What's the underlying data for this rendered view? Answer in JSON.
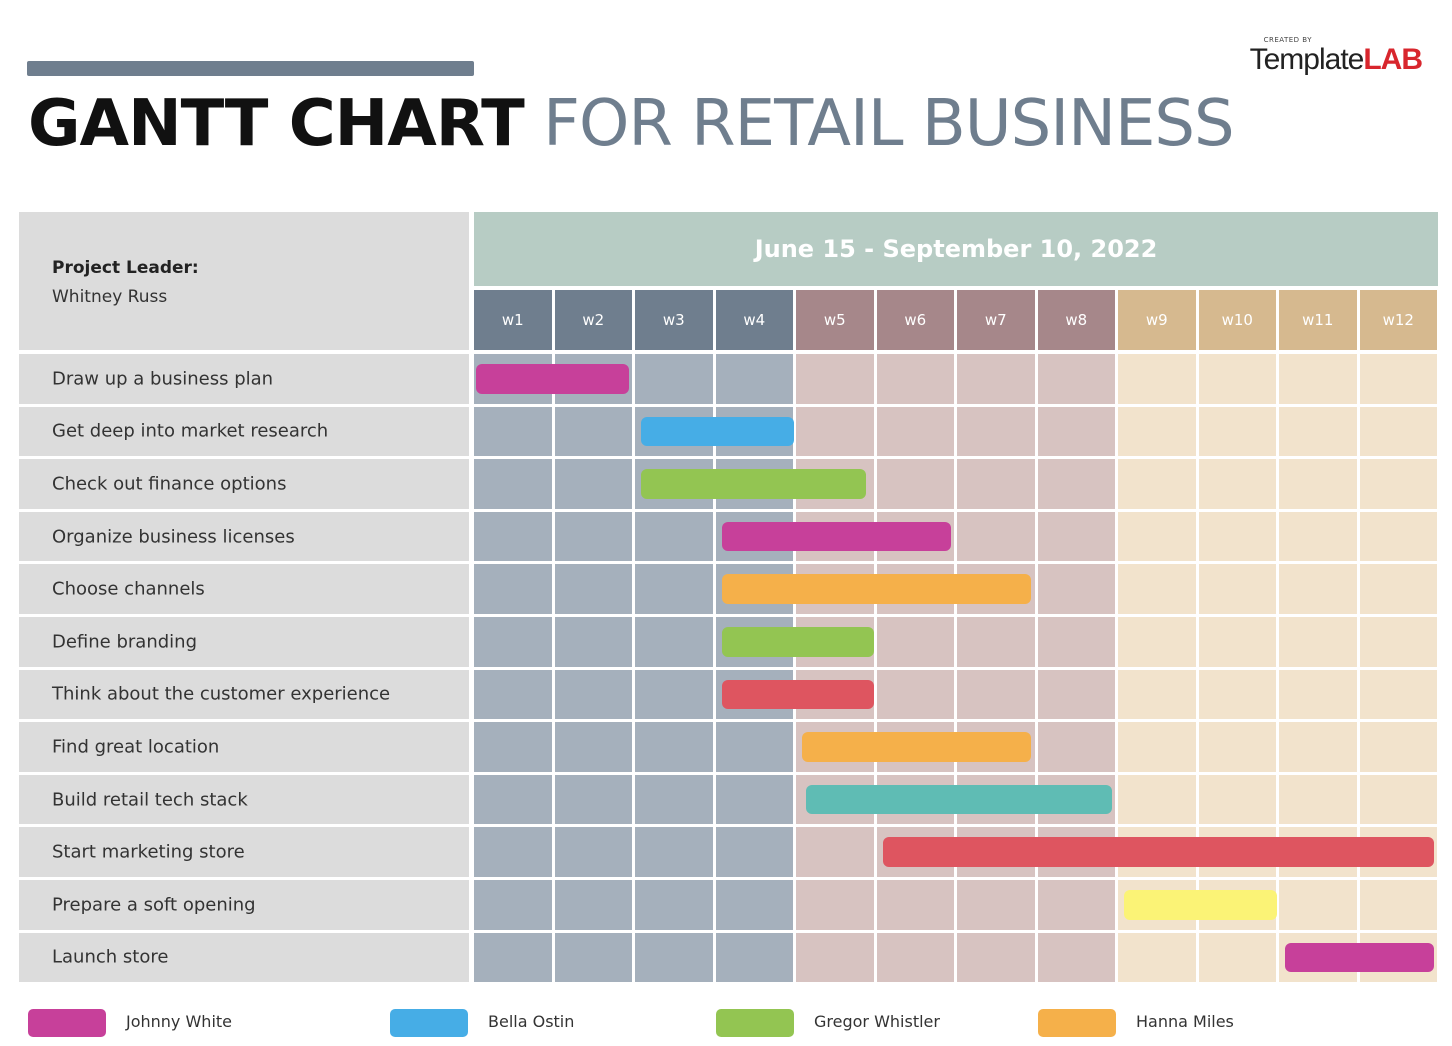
{
  "header": {
    "title_bold": "GANTT CHART",
    "title_light": "FOR RETAIL BUSINESS",
    "logo_small": "CREATED BY",
    "logo_part1": "Template",
    "logo_part2": "LAB"
  },
  "project": {
    "leader_label": "Project Leader:",
    "leader_name": "Whitney Russ",
    "date_range": "June 15 - September 10, 2022"
  },
  "colors": {
    "magenta": "#c7409a",
    "blue": "#46ade6",
    "green": "#93c552",
    "orange": "#f5b04a",
    "red": "#de5560",
    "teal": "#5fbcb4",
    "yellow": "#fbf376",
    "slate": "#6f7e8e"
  },
  "chart_data": {
    "type": "gantt",
    "weeks": [
      "w1",
      "w2",
      "w3",
      "w4",
      "w5",
      "w6",
      "w7",
      "w8",
      "w9",
      "w10",
      "w11",
      "w12"
    ],
    "tasks": [
      {
        "name": "Draw up a business plan",
        "start": 1,
        "end": 2.9,
        "color": "magenta"
      },
      {
        "name": "Get deep into market research",
        "start": 3.05,
        "end": 4.95,
        "color": "blue"
      },
      {
        "name": "Check out finance options",
        "start": 3.05,
        "end": 5.85,
        "color": "green"
      },
      {
        "name": "Organize business licenses",
        "start": 4.05,
        "end": 6.9,
        "color": "magenta"
      },
      {
        "name": "Choose channels",
        "start": 4.05,
        "end": 7.9,
        "color": "orange"
      },
      {
        "name": "Define branding",
        "start": 4.05,
        "end": 5.95,
        "color": "green"
      },
      {
        "name": "Think about the customer experience",
        "start": 4.05,
        "end": 5.95,
        "color": "red"
      },
      {
        "name": "Find great location",
        "start": 5.05,
        "end": 7.9,
        "color": "orange"
      },
      {
        "name": "Build retail tech stack",
        "start": 5.1,
        "end": 8.9,
        "color": "teal"
      },
      {
        "name": "Start marketing store",
        "start": 6.05,
        "end": 12.9,
        "color": "red"
      },
      {
        "name": "Prepare a soft opening",
        "start": 9.05,
        "end": 10.95,
        "color": "yellow"
      },
      {
        "name": "Launch store",
        "start": 11.05,
        "end": 12.9,
        "color": "magenta"
      }
    ],
    "legend": [
      {
        "name": "Johnny White",
        "color": "magenta"
      },
      {
        "name": "Bella Ostin",
        "color": "blue"
      },
      {
        "name": "Gregor Whistler",
        "color": "green"
      },
      {
        "name": "Hanna Miles",
        "color": "orange"
      }
    ]
  }
}
